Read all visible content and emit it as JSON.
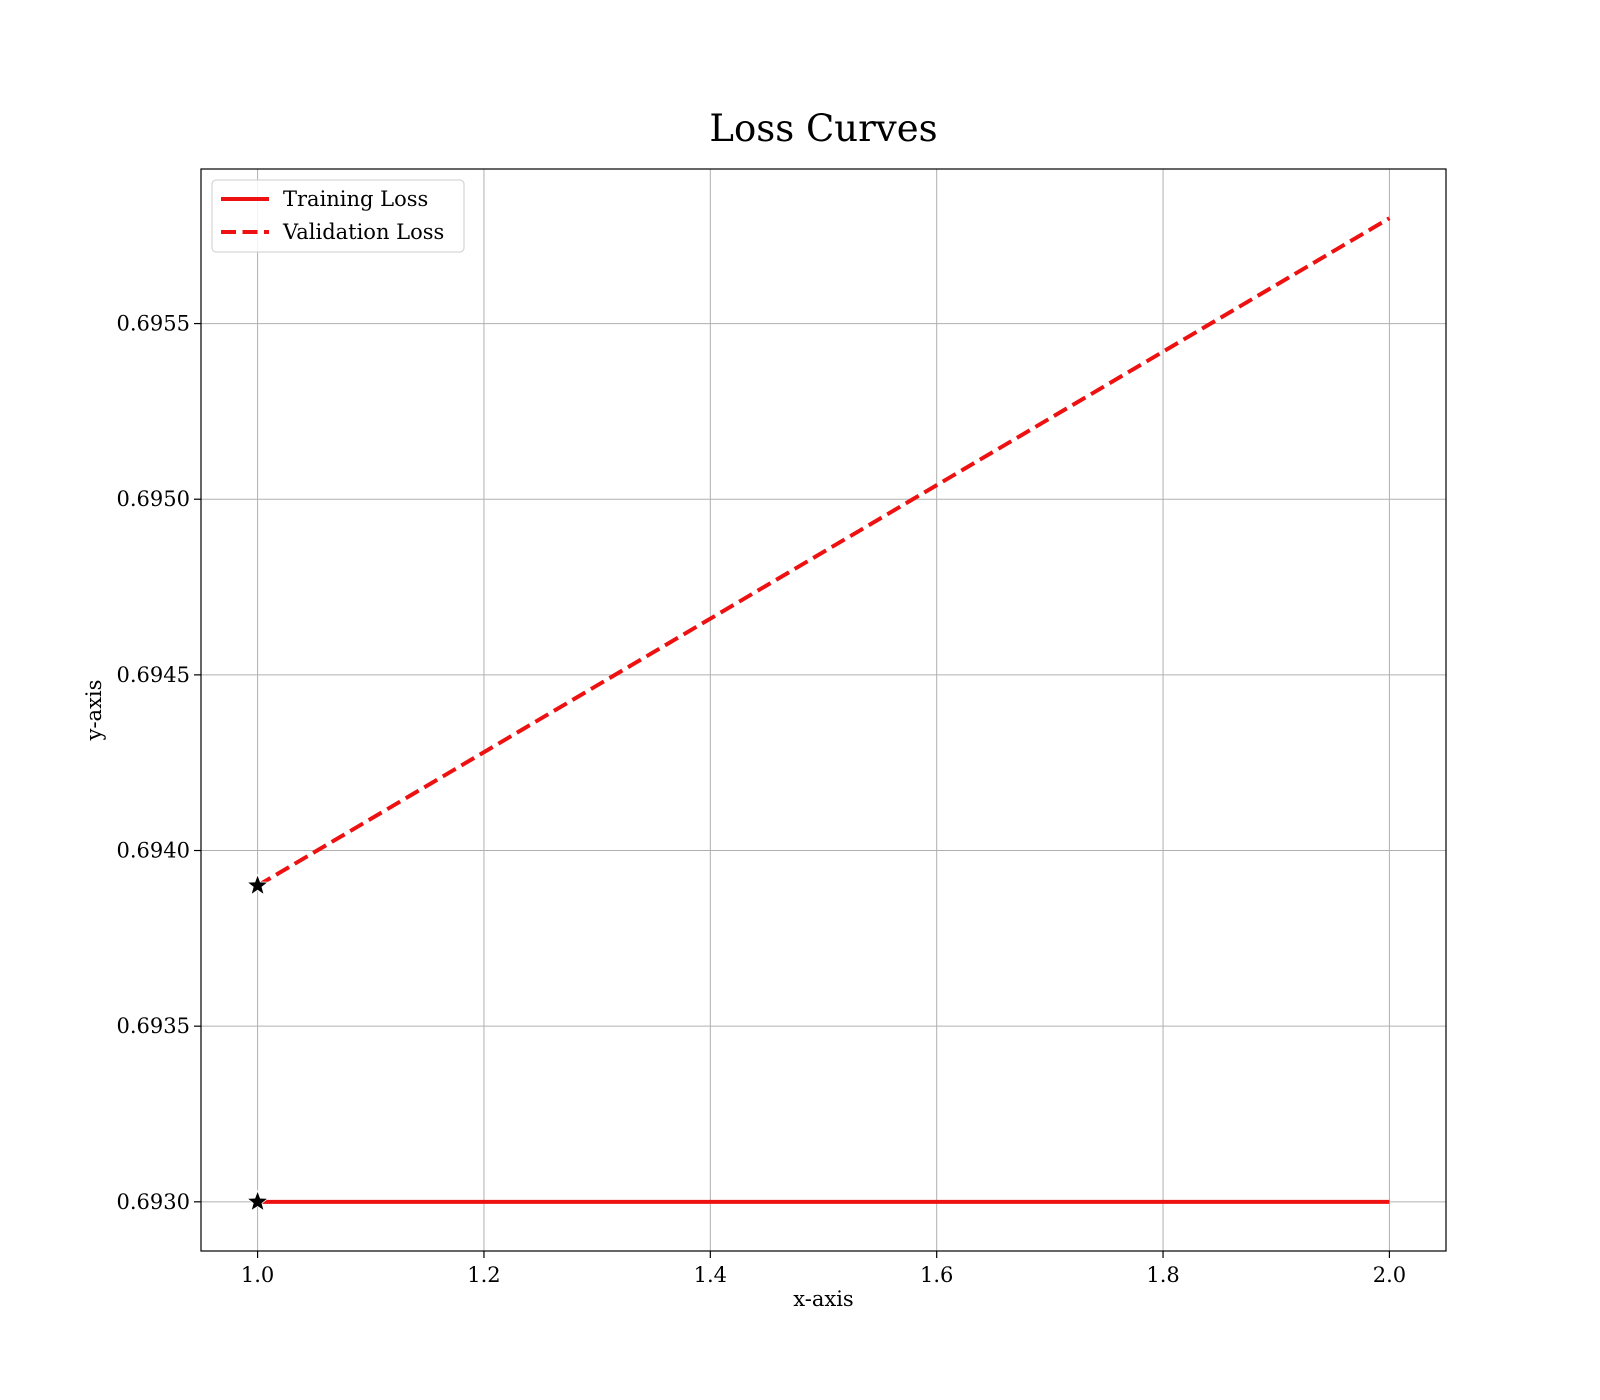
{
  "chart_data": {
    "type": "line",
    "title": "Loss Curves",
    "xlabel": "x-axis",
    "ylabel": "y-axis",
    "xlim": [
      0.95,
      2.05
    ],
    "ylim": [
      0.69286,
      0.69594
    ],
    "xticks": [
      1.0,
      1.2,
      1.4,
      1.6,
      1.8,
      2.0
    ],
    "xtick_labels": [
      "1.0",
      "1.2",
      "1.4",
      "1.6",
      "1.8",
      "2.0"
    ],
    "yticks": [
      0.693,
      0.6935,
      0.694,
      0.6945,
      0.695,
      0.6955
    ],
    "ytick_labels": [
      "0.6930",
      "0.6935",
      "0.6940",
      "0.6945",
      "0.6950",
      "0.6955"
    ],
    "grid": true,
    "legend_position": "top-left",
    "series": [
      {
        "name": "Training Loss",
        "x": [
          1,
          2
        ],
        "y": [
          0.693,
          0.693
        ],
        "color": "#ee1111",
        "linestyle": "solid",
        "marker": "star",
        "marker_at": [
          0
        ]
      },
      {
        "name": "Validation Loss",
        "x": [
          1,
          2
        ],
        "y": [
          0.6939,
          0.6958
        ],
        "color": "#ee1111",
        "linestyle": "dashed",
        "marker": "star",
        "marker_at": [
          0
        ]
      }
    ]
  }
}
